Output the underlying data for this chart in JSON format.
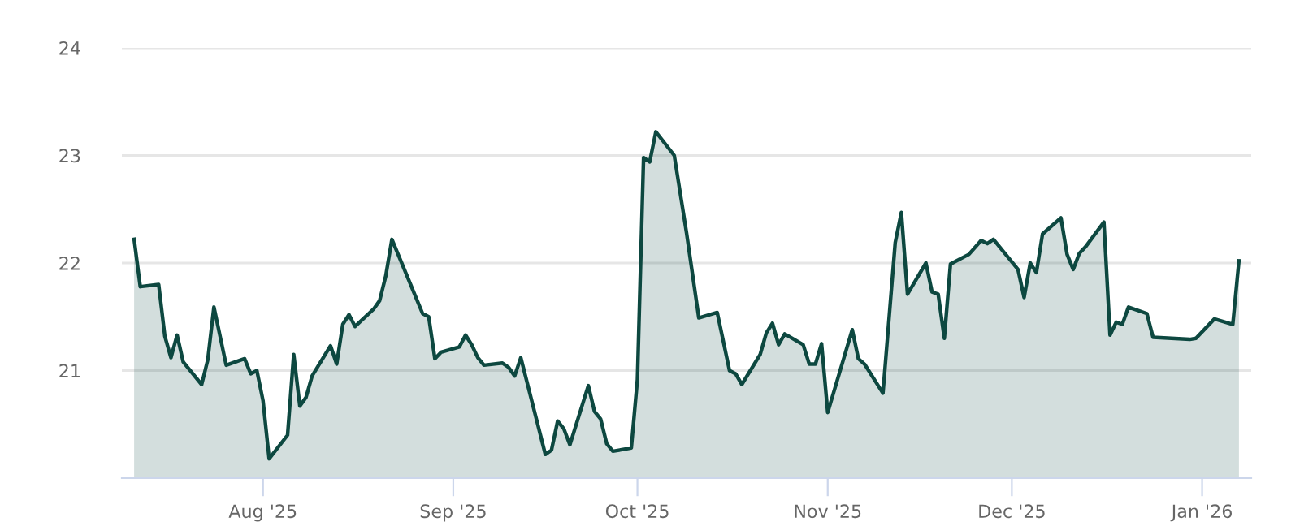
{
  "chart_data": {
    "type": "area",
    "grid": "y",
    "legend": false,
    "marker": "none",
    "line_style": "solid",
    "xlim": [
      "2025-07-09",
      "2026-01-09"
    ],
    "ylim": [
      20,
      24
    ],
    "yticks": [
      21,
      22,
      23,
      24
    ],
    "xticks": [
      {
        "value": "2025-08-01",
        "label": "Aug '25"
      },
      {
        "value": "2025-09-01",
        "label": "Sep '25"
      },
      {
        "value": "2025-10-01",
        "label": "Oct '25"
      },
      {
        "value": "2025-11-01",
        "label": "Nov '25"
      },
      {
        "value": "2025-12-01",
        "label": "Dec '25"
      },
      {
        "value": "2026-01-01",
        "label": "Jan '26"
      }
    ],
    "x": [
      "2025-07-11",
      "2025-07-12",
      "2025-07-15",
      "2025-07-16",
      "2025-07-17",
      "2025-07-18",
      "2025-07-19",
      "2025-07-22",
      "2025-07-23",
      "2025-07-24",
      "2025-07-26",
      "2025-07-29",
      "2025-07-30",
      "2025-07-31",
      "2025-08-01",
      "2025-08-02",
      "2025-08-05",
      "2025-08-06",
      "2025-08-07",
      "2025-08-08",
      "2025-08-09",
      "2025-08-12",
      "2025-08-13",
      "2025-08-14",
      "2025-08-15",
      "2025-08-16",
      "2025-08-19",
      "2025-08-20",
      "2025-08-21",
      "2025-08-22",
      "2025-08-27",
      "2025-08-28",
      "2025-08-29",
      "2025-08-30",
      "2025-09-02",
      "2025-09-03",
      "2025-09-04",
      "2025-09-05",
      "2025-09-06",
      "2025-09-09",
      "2025-09-10",
      "2025-09-11",
      "2025-09-12",
      "2025-09-16",
      "2025-09-17",
      "2025-09-18",
      "2025-09-19",
      "2025-09-20",
      "2025-09-23",
      "2025-09-24",
      "2025-09-25",
      "2025-09-26",
      "2025-09-27",
      "2025-09-30",
      "2025-10-01",
      "2025-10-02",
      "2025-10-03",
      "2025-10-04",
      "2025-10-07",
      "2025-10-09",
      "2025-10-11",
      "2025-10-14",
      "2025-10-16",
      "2025-10-17",
      "2025-10-18",
      "2025-10-21",
      "2025-10-22",
      "2025-10-23",
      "2025-10-24",
      "2025-10-25",
      "2025-10-28",
      "2025-10-29",
      "2025-10-30",
      "2025-10-31",
      "2025-11-01",
      "2025-11-05",
      "2025-11-06",
      "2025-11-07",
      "2025-11-10",
      "2025-11-12",
      "2025-11-13",
      "2025-11-14",
      "2025-11-17",
      "2025-11-18",
      "2025-11-19",
      "2025-11-20",
      "2025-11-21",
      "2025-11-24",
      "2025-11-26",
      "2025-11-27",
      "2025-11-28",
      "2025-12-02",
      "2025-12-03",
      "2025-12-04",
      "2025-12-05",
      "2025-12-06",
      "2025-12-09",
      "2025-12-10",
      "2025-12-11",
      "2025-12-12",
      "2025-12-13",
      "2025-12-16",
      "2025-12-17",
      "2025-12-18",
      "2025-12-19",
      "2025-12-20",
      "2025-12-23",
      "2025-12-24",
      "2025-12-30",
      "2025-12-31",
      "2026-01-03",
      "2026-01-06",
      "2026-01-07"
    ],
    "series": [
      {
        "color": "#0d4840",
        "values": [
          22.22,
          21.78,
          21.8,
          21.32,
          21.12,
          21.33,
          21.08,
          20.87,
          21.1,
          21.59,
          21.05,
          21.11,
          20.97,
          21.0,
          20.72,
          20.18,
          20.4,
          21.15,
          20.67,
          20.75,
          20.95,
          21.23,
          21.06,
          21.43,
          21.52,
          21.41,
          21.57,
          21.65,
          21.88,
          22.22,
          21.53,
          21.5,
          21.11,
          21.17,
          21.22,
          21.33,
          21.24,
          21.12,
          21.05,
          21.07,
          21.03,
          20.95,
          21.12,
          20.22,
          20.26,
          20.53,
          20.46,
          20.31,
          20.86,
          20.62,
          20.55,
          20.32,
          20.25,
          20.28,
          20.92,
          22.98,
          22.94,
          23.22,
          23.0,
          22.28,
          21.49,
          21.54,
          21.0,
          20.97,
          20.87,
          21.15,
          21.35,
          21.44,
          21.24,
          21.34,
          21.24,
          21.06,
          21.06,
          21.25,
          20.61,
          21.38,
          21.11,
          21.06,
          20.79,
          22.19,
          22.47,
          21.71,
          22.0,
          21.73,
          21.71,
          21.3,
          21.99,
          22.08,
          22.21,
          22.18,
          22.22,
          21.94,
          21.68,
          22.0,
          21.91,
          22.27,
          22.42,
          22.08,
          21.94,
          22.09,
          22.15,
          22.38,
          21.33,
          21.45,
          21.43,
          21.59,
          21.53,
          21.31,
          21.29,
          21.3,
          21.48,
          21.43,
          22.02
        ]
      }
    ]
  }
}
